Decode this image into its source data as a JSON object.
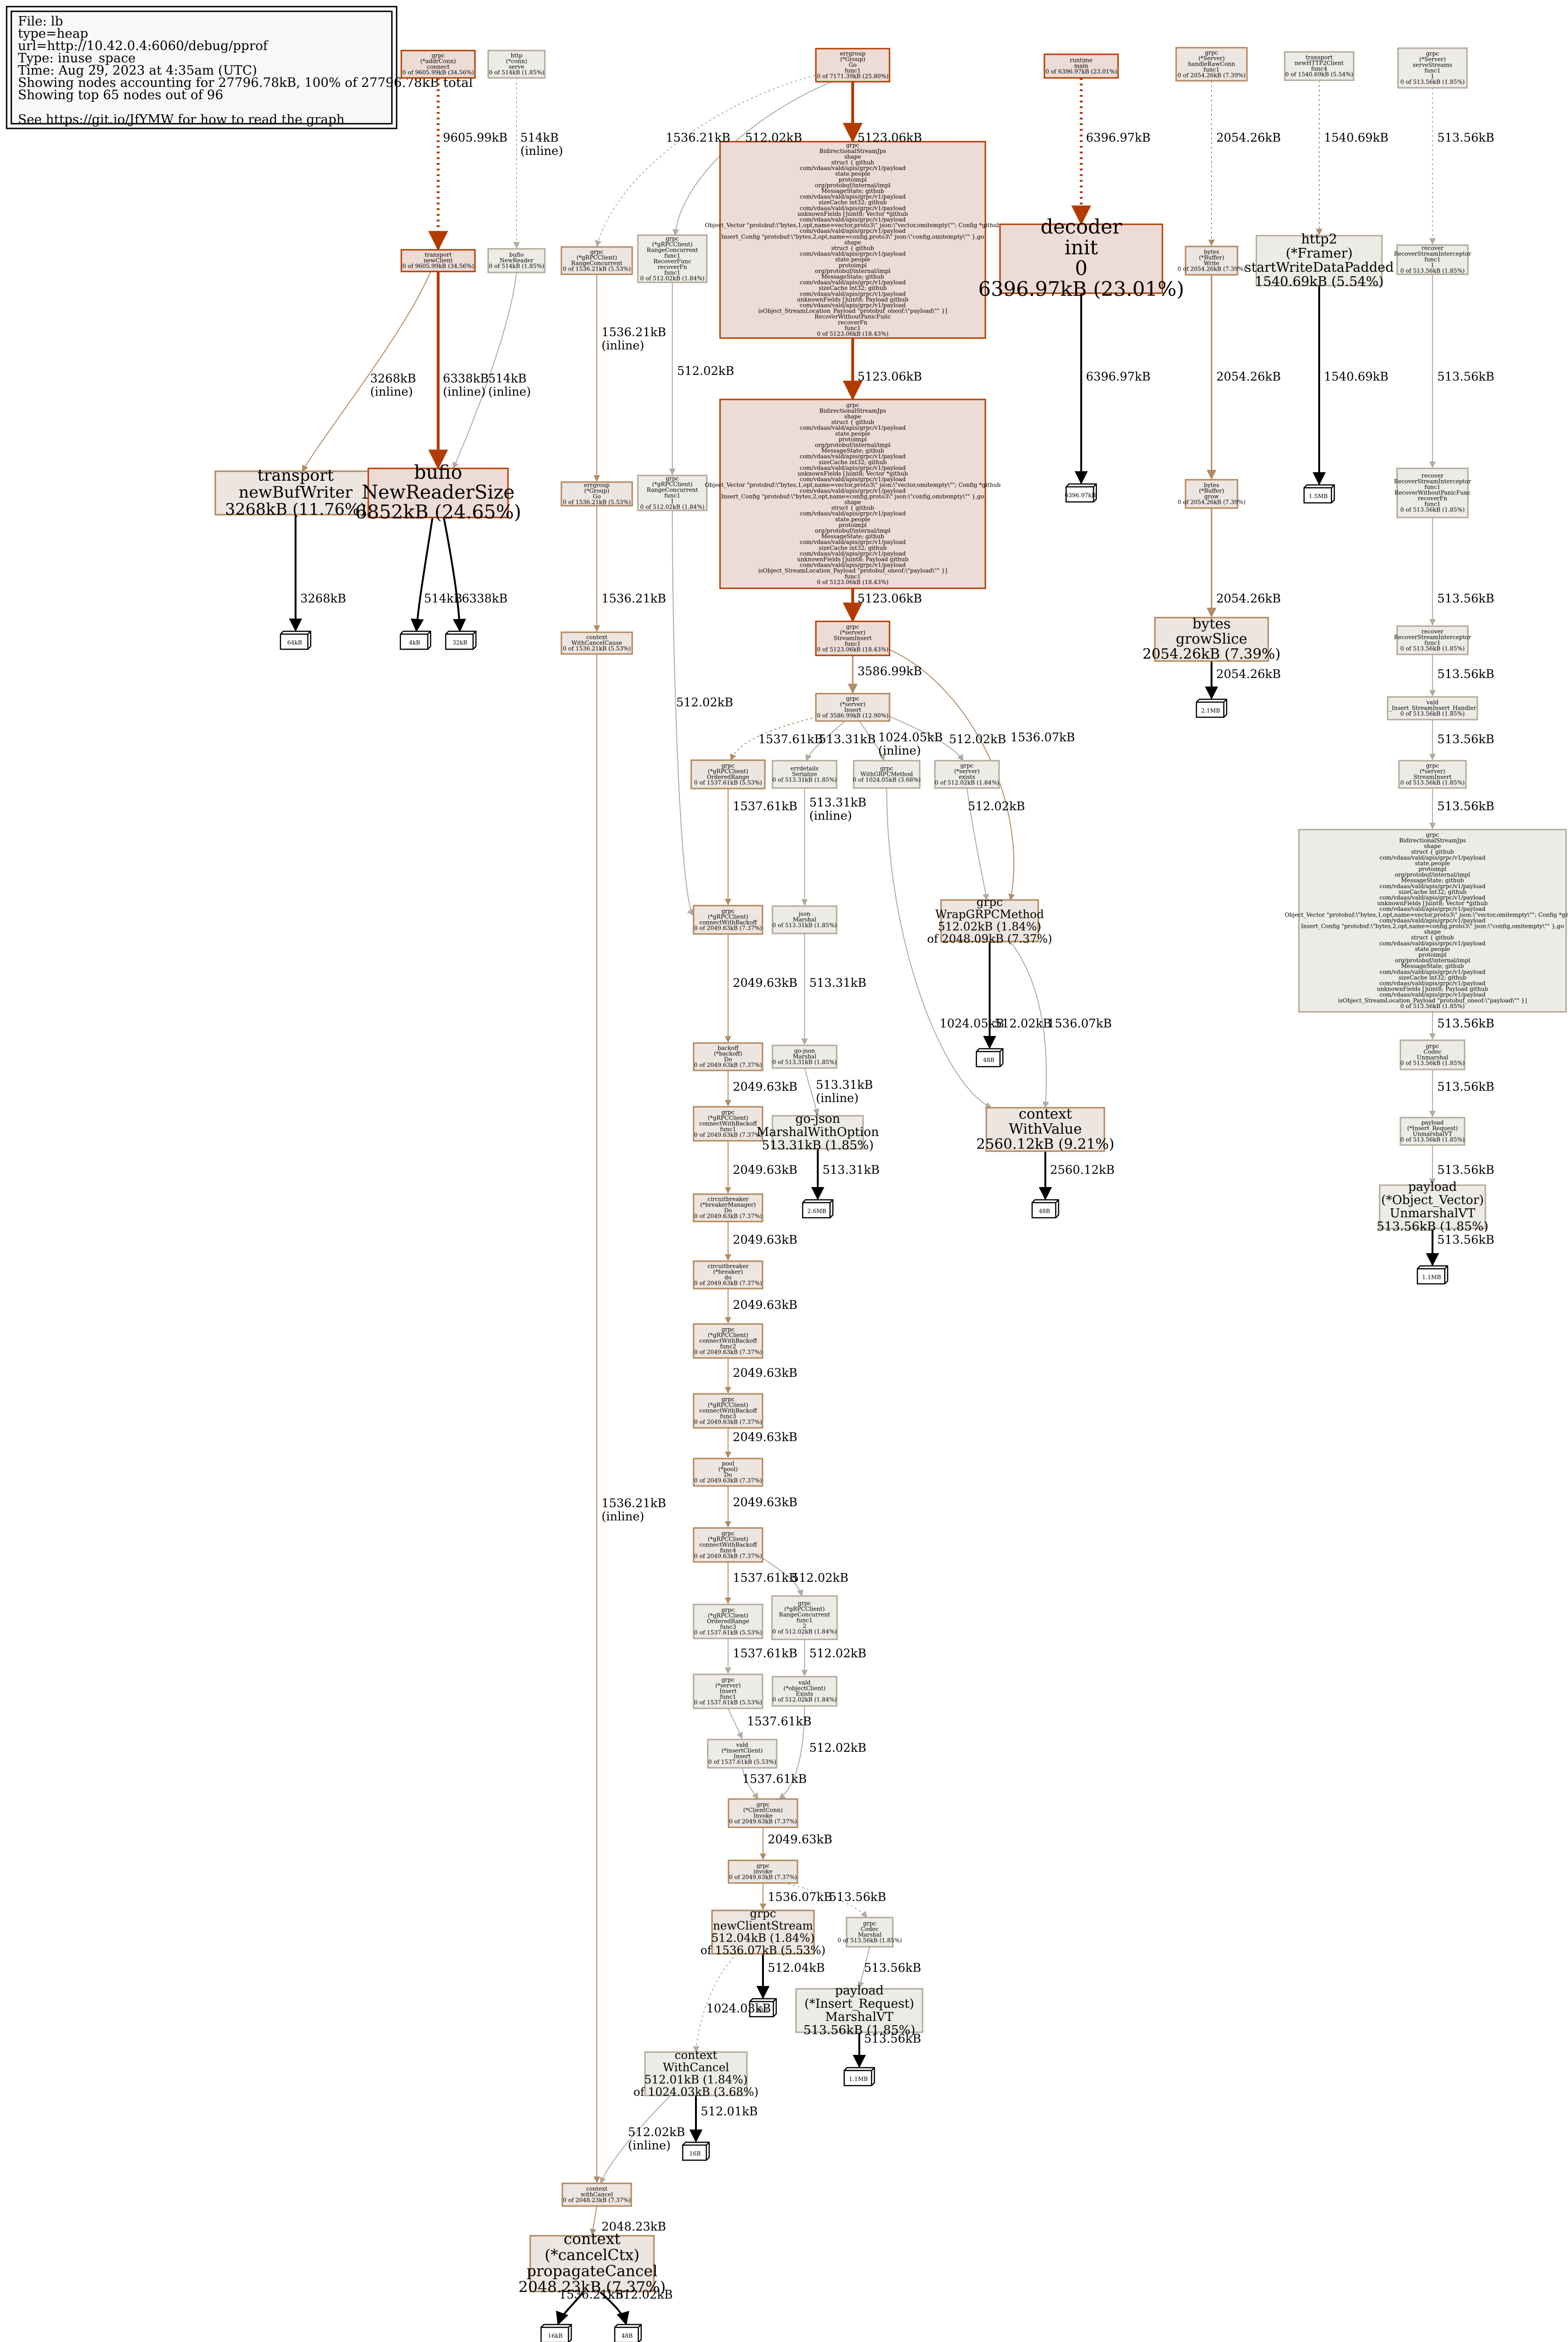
{
  "legend": {
    "lines": [
      "File: lb",
      "type=heap",
      "url=http://10.42.0.4:6060/debug/pprof",
      "Type: inuse_space",
      "Time: Aug 29, 2023 at 4:35am (UTC)",
      "Showing nodes accounting for 27796.78kB, 100% of 27796.78kB total",
      "Showing top 65 nodes out of 96",
      "",
      "See https://git.io/JfYMW for how to read the graph"
    ]
  },
  "colors": {
    "hot_fill": "#eddbd5",
    "hot_stroke": "#b23c00",
    "warm_fill": "#ede5df",
    "warm_stroke": "#b2865c",
    "cool_fill": "#edebe6",
    "cool_stroke": "#b2aa99",
    "edge_hot": "#b23c00",
    "edge_warm": "#b28c66",
    "edge_cool": "#b2ab9e",
    "edge_black": "#000000"
  },
  "nodes": {
    "n_grpc_addrconn_connect": [
      "grpc",
      "(*addrConn)",
      "connect",
      "0 of 9605.99kB (34.56%)"
    ],
    "n_http_conn_serve": [
      "http",
      "(*conn)",
      "serve",
      "0 of 514kB (1.85%)"
    ],
    "n_errgroup_go_func1": [
      "errgroup",
      "(*Group)",
      "Go",
      "func1",
      "0 of 7171.39kB (25.80%)"
    ],
    "n_runtime_main": [
      "runtime",
      "main",
      "0 of 6396.97kB (23.01%)"
    ],
    "n_grpc_server_handleRawConn_func1": [
      "grpc",
      "(*Server)",
      "handleRawConn",
      "func1",
      "0 of 2054.26kB (7.39%)"
    ],
    "n_transport_newhttp2client_func4": [
      "transport",
      "newHTTP2Client",
      "func4",
      "0 of 1540.69kB (5.54%)"
    ],
    "n_grpc_server_serveStreams_func1": [
      "grpc",
      "(*Server)",
      "serveStreams",
      "func1",
      "1",
      "0 of 513.56kB (1.85%)"
    ],
    "n_transport_newClient": [
      "transport",
      "newClient",
      "0 of 9605.99kB (34.56%)"
    ],
    "n_bufio_NewReader": [
      "bufio",
      "NewReader",
      "0 of 514kB (1.85%)"
    ],
    "n_grpc_rangeconcurrent_1": [
      "grpc",
      "(*gRPCClient)",
      "RangeConcurrent",
      "0 of 1536.21kB (5.53%)"
    ],
    "n_grpc_rangeconcurrent_func1": [
      "grpc",
      "(*gRPCClient)",
      "RangeConcurrent",
      "func1",
      "RecoverFunc",
      "recoverFn",
      "func1",
      "0 of 512.02kB (1.84%)"
    ],
    "n_bidi_1": [
      "grpc",
      "BidirectionalStreamJps",
      "shape",
      "struct { github",
      "com/vdaas/vald/apis/grpc/v1/payload",
      "state.people",
      "protoimpl",
      "org/protobuf/internal/impl",
      "MessageState; github",
      "com/vdaas/vald/apis/grpc/v1/payload",
      "sizeCache int32; github",
      "com/vdaas/vald/apis/grpc/v1/payload",
      "unknownFields []uint8; Vector *github",
      "com/vdaas/vald/apis/grpc/v1/payload",
      "Object_Vector \"protobuf:\\\"bytes,1,opt,name=vector,proto3\\\" json:\\\"vector,omitempty\\\"\"; Config *github",
      "com/vdaas/vald/apis/grpc/v1/payload",
      "Insert_Config \"protobuf:\\\"bytes,2,opt,name=config,proto3\\\" json:\\\"config,omitempty\\\"\" },go",
      "shape",
      "struct { github",
      "com/vdaas/vald/apis/grpc/v1/payload",
      "state.people",
      "protoimpl",
      "org/protobuf/internal/impl",
      "MessageState; github",
      "com/vdaas/vald/apis/grpc/v1/payload",
      "sizeCache int32; github",
      "com/vdaas/vald/apis/grpc/v1/payload",
      "unknownFields []uint8; Payload github",
      "com/vdaas/vald/apis/grpc/v1/payload",
      "isObject_StreamLocation_Payload \"protobuf_oneof:\\\"payload\\\"\" }]",
      "RecoverWithoutPanicFunc",
      "recoverFn",
      "func1",
      "0 of 5123.06kB (18.43%)"
    ],
    "n_decoder_init": [
      "decoder",
      "init",
      "0",
      "6396.97kB (23.01%)"
    ],
    "n_bytes_buffer_write": [
      "bytes",
      "(*Buffer)",
      "Write",
      "0 of 2054.26kB (7.39%)"
    ],
    "n_http2_framer": [
      "http2",
      "(*Framer)",
      "startWriteDataPadded",
      "1540.69kB (5.54%)"
    ],
    "n_recover_1": [
      "recover",
      "RecoverStreamInterceptor",
      "func1",
      "1",
      "0 of 513.56kB (1.85%)"
    ],
    "n_transport_newBufWriter": [
      "transport",
      "newBufWriter",
      "3268kB (11.76%)"
    ],
    "n_bufio_NewReaderSize": [
      "bufio",
      "NewReaderSize",
      "6852kB (24.65%)"
    ],
    "n_errgroup_Go": [
      "errgroup",
      "(*Group)",
      "Go",
      "0 of 1536.21kB (5.53%)"
    ],
    "n_grpc_rangeconcurrent_func1b": [
      "grpc",
      "(*gRPCClient)",
      "RangeConcurrent",
      "func1",
      "1",
      "0 of 512.02kB (1.84%)"
    ],
    "n_bidi_2": [
      "grpc",
      "BidirectionalStreamJps",
      "shape",
      "struct { github",
      "com/vdaas/vald/apis/grpc/v1/payload",
      "state.people",
      "protoimpl",
      "org/protobuf/internal/impl",
      "MessageState; github",
      "com/vdaas/vald/apis/grpc/v1/payload",
      "sizeCache int32; github",
      "com/vdaas/vald/apis/grpc/v1/payload",
      "unknownFields []uint8; Vector *github",
      "com/vdaas/vald/apis/grpc/v1/payload",
      "Object_Vector \"protobuf:\\\"bytes,1,opt,name=vector,proto3\\\" json:\\\"vector,omitempty\\\"\"; Config *github",
      "com/vdaas/vald/apis/grpc/v1/payload",
      "Insert_Config \"protobuf:\\\"bytes,2,opt,name=config,proto3\\\" json:\\\"config,omitempty\\\"\" },go",
      "shape",
      "struct { github",
      "com/vdaas/vald/apis/grpc/v1/payload",
      "state.people",
      "protoimpl",
      "org/protobuf/internal/impl",
      "MessageState; github",
      "com/vdaas/vald/apis/grpc/v1/payload",
      "sizeCache int32; github",
      "com/vdaas/vald/apis/grpc/v1/payload",
      "unknownFields []uint8; Payload github",
      "com/vdaas/vald/apis/grpc/v1/payload",
      "isObject_StreamLocation_Payload \"protobuf_oneof:\\\"payload\\\"\" }]",
      "func1",
      "0 of 5123.06kB (18.43%)"
    ],
    "n_bytes_buffer_grow": [
      "bytes",
      "(*Buffer)",
      "grow",
      "0 of 2054.26kB (7.39%)"
    ],
    "n_recover_2": [
      "recover",
      "RecoverStreamInterceptor",
      "func1",
      "RecoverWithoutPanicFunc",
      "recoverFn",
      "func1",
      "0 of 513.56kB (1.85%)"
    ],
    "n_context_WithCancelCause": [
      "context",
      "WithCancelCause",
      "0 of 1536.21kB (5.53%)"
    ],
    "n_grpc_server_StreamInsert": [
      "grpc",
      "(*server)",
      "StreamInsert",
      "func1",
      "0 of 5123.06kB (18.43%)"
    ],
    "n_bytes_growSlice": [
      "bytes",
      "growSlice",
      "2054.26kB (7.39%)"
    ],
    "n_recover_3": [
      "recover",
      "RecoverStreamInterceptor",
      "func1",
      "0 of 513.56kB (1.85%)"
    ],
    "n_vald_insert_handler": [
      "vald",
      "_Insert_StreamInsert_Handler",
      "0 of 513.56kB (1.85%)"
    ],
    "n_grpc_server_Insert": [
      "grpc",
      "(*server)",
      "Insert",
      "0 of 3586.99kB (12.90%)"
    ],
    "n_grpc_server_StreamInsert2": [
      "grpc",
      "(*server)",
      "StreamInsert",
      "0 of 513.56kB (1.85%)"
    ],
    "n_grpc_orderedrange_1": [
      "grpc",
      "(*gRPCClient)",
      "OrderedRange",
      "0 of 1537.61kB (5.53%)"
    ],
    "n_errdetails_Serialize": [
      "errdetails",
      "Serialize",
      "0 of 513.31kB (1.85%)"
    ],
    "n_grpc_WithGRPCMethod": [
      "grpc",
      "WithGRPCMethod",
      "0 of 1024.05kB (3.68%)"
    ],
    "n_grpc_server_exists": [
      "grpc",
      "(*server)",
      "exists",
      "0 of 512.02kB (1.84%)"
    ],
    "n_bidi_3": [
      "grpc",
      "BidirectionalStreamJps",
      "shape",
      "struct { github",
      "com/vdaas/vald/apis/grpc/v1/payload",
      "state.people",
      "protoimpl",
      "org/protobuf/internal/impl",
      "MessageState; github",
      "com/vdaas/vald/apis/grpc/v1/payload",
      "sizeCache int32; github",
      "com/vdaas/vald/apis/grpc/v1/payload",
      "unknownFields []uint8; Vector *github",
      "com/vdaas/vald/apis/grpc/v1/payload",
      "Object_Vector \"protobuf:\\\"bytes,1,opt,name=vector,proto3\\\" json:\\\"vector,omitempty\\\"\"; Config *github",
      "com/vdaas/vald/apis/grpc/v1/payload",
      "Insert_Config \"protobuf:\\\"bytes,2,opt,name=config,proto3\\\" json:\\\"config,omitempty\\\"\" },go",
      "shape",
      "struct { github",
      "com/vdaas/vald/apis/grpc/v1/payload",
      "state.people",
      "protoimpl",
      "org/protobuf/internal/impl",
      "MessageState; github",
      "com/vdaas/vald/apis/grpc/v1/payload",
      "sizeCache int32; github",
      "com/vdaas/vald/apis/grpc/v1/payload",
      "unknownFields []uint8; Payload github",
      "com/vdaas/vald/apis/grpc/v1/payload",
      "isObject_StreamLocation_Payload \"protobuf_oneof:\\\"payload\\\"\" }]",
      "0 of 513.56kB (1.85%)"
    ],
    "n_grpc_connectwithbackoff_1": [
      "grpc",
      "(*gRPCClient)",
      "connectWithBackoff",
      "0 of 2049.63kB (7.37%)"
    ],
    "n_json_Marshal": [
      "json",
      "Marshal",
      "0 of 513.31kB (1.85%)"
    ],
    "n_grpc_WrapGRPCMethod": [
      "grpc",
      "WrapGRPCMethod",
      "512.02kB (1.84%)",
      "of 2048.09kB (7.37%)"
    ],
    "n_backoff_Do": [
      "backoff",
      "(*backoff)",
      "Do",
      "0 of 2049.63kB (7.37%)"
    ],
    "n_gojson_Marshal": [
      "go-json",
      "Marshal",
      "0 of 513.31kB (1.85%)"
    ],
    "n_context_WithValue": [
      "context",
      "WithValue",
      "2560.12kB (9.21%)"
    ],
    "n_grpc_codec_Unmarshal": [
      "grpc",
      "Codec",
      "Unmarshal",
      "0 of 513.56kB (1.85%)"
    ],
    "n_grpc_connectwithbackoff_func1": [
      "grpc",
      "(*gRPCClient)",
      "connectWithBackoff",
      "func1",
      "0 of 2049.63kB (7.37%)"
    ],
    "n_gojson_MarshalWithOption": [
      "go-json",
      "MarshalWithOption",
      "513.31kB (1.85%)"
    ],
    "n_payload_insertreq_unmarshal": [
      "payload",
      "(*Insert_Request)",
      "UnmarshalVT",
      "0 of 513.56kB (1.85%)"
    ],
    "n_cb_breakermanager_Do": [
      "circuitbreaker",
      "(*breakerManager)",
      "Do",
      "0 of 2049.63kB (7.37%)"
    ],
    "n_payload_objectvector_unmarshal": [
      "payload",
      "(*Object_Vector)",
      "UnmarshalVT",
      "513.56kB (1.85%)"
    ],
    "n_cb_breaker_do": [
      "circuitbreaker",
      "(*breaker)",
      "do",
      "0 of 2049.63kB (7.37%)"
    ],
    "n_grpc_connectwithbackoff_func2": [
      "grpc",
      "(*gRPCClient)",
      "connectWithBackoff",
      "func2",
      "0 of 2049.63kB (7.37%)"
    ],
    "n_grpc_connectwithbackoff_func3": [
      "grpc",
      "(*gRPCClient)",
      "connectWithBackoff",
      "func3",
      "0 of 2049.63kB (7.37%)"
    ],
    "n_pool_Do": [
      "pool",
      "(*pool)",
      "Do",
      "0 of 2049.63kB (7.37%)"
    ],
    "n_grpc_connectwithbackoff_func4": [
      "grpc",
      "(*gRPCClient)",
      "connectWithBackoff",
      "func4",
      "0 of 2049.63kB (7.37%)"
    ],
    "n_grpc_orderedrange_func3": [
      "grpc",
      "(*gRPCClient)",
      "OrderedRange",
      "func3",
      "0 of 1537.61kB (5.53%)"
    ],
    "n_grpc_rangeconcurrent_func1c": [
      "grpc",
      "(*gRPCClient)",
      "RangeConcurrent",
      "func1",
      "2",
      "0 of 512.02kB (1.84%)"
    ],
    "n_grpc_server_Insert_func1": [
      "grpc",
      "(*server)",
      "Insert",
      "func1",
      "0 of 1537.61kB (5.53%)"
    ],
    "n_vald_objectclient_Exists": [
      "vald",
      "(*objectClient)",
      "Exists",
      "0 of 512.02kB (1.84%)"
    ],
    "n_vald_insertclient_Insert": [
      "vald",
      "(*insertClient)",
      "Insert",
      "0 of 1537.61kB (5.53%)"
    ],
    "n_grpc_clientconn_invoke": [
      "grpc",
      "(*ClientConn)",
      "Invoke",
      "0 of 2049.63kB (7.37%)"
    ],
    "n_grpc_invoke": [
      "grpc",
      "invoke",
      "0 of 2049.63kB (7.37%)"
    ],
    "n_grpc_newClientStream": [
      "grpc",
      "newClientStream",
      "512.04kB (1.84%)",
      "of 1536.07kB (5.53%)"
    ],
    "n_grpc_codec_Marshal": [
      "grpc",
      "Codec",
      "Marshal",
      "0 of 513.56kB (1.85%)"
    ],
    "n_payload_insertreq_marshal": [
      "payload",
      "(*Insert_Request)",
      "MarshalVT",
      "513.56kB (1.85%)"
    ],
    "n_context_WithCancel": [
      "context",
      "WithCancel",
      "512.01kB (1.84%)",
      "of 1024.03kB (3.68%)"
    ],
    "n_context_withCancel": [
      "context",
      "withCancel",
      "0 of 2048.23kB (7.37%)"
    ],
    "n_context_propagateCancel": [
      "context",
      "(*cancelCtx)",
      "propagateCancel",
      "2048.23kB (7.37%)"
    ]
  },
  "leaves": {
    "l_6396": "6396.97kB",
    "l_1540": "1.5MB",
    "l_3268": "64kB",
    "l_514": "4kB",
    "l_6338": "32kB",
    "l_2054": "2.1MB",
    "l_wrap": "48B",
    "l_513_31": "2.6MB",
    "l_ctxv": "48B",
    "l_513_56": "1.1MB",
    "l_ncs": "48B",
    "l_pm": "1.1MB",
    "l_wc": "16B",
    "l_pc1": "16kB",
    "l_pc2": "48B"
  },
  "edges": {
    "e1": "9605.99kB",
    "e2": "514kB",
    "e2b": "(inline)",
    "e3": "1536.21kB",
    "e4": "512.02kB",
    "e5": "5123.06kB",
    "e6": "6396.97kB",
    "e7": "2054.26kB",
    "e8": "1540.69kB",
    "e9": "513.56kB",
    "e10": "3268kB",
    "e10b": "(inline)",
    "e11": "6338kB",
    "e11b": "(inline)",
    "e12": "514kB",
    "e12b": "(inline)",
    "e13": "1536.21kB",
    "e13b": "(inline)",
    "e14": "512.02kB",
    "e15": "5123.06kB",
    "e16": "6396.97kB",
    "e17": "2054.26kB",
    "e18": "1540.69kB",
    "e19": "513.56kB",
    "e20": "3268kB",
    "e21": "514kB",
    "e22": "6338kB",
    "e23": "1536.21kB",
    "e24": "5123.06kB",
    "e25": "2054.26kB",
    "e26": "513.56kB",
    "e27": "3586.99kB",
    "e28": "1536.07kB",
    "e29": "2054.26kB",
    "e30": "513.56kB",
    "e31": "1537.61kB",
    "e32": "513.31kB",
    "e33": "1024.05kB",
    "e33b": "(inline)",
    "e34": "512.02kB",
    "e35": "512.02kB",
    "e36": "513.56kB",
    "e37": "1537.61kB",
    "e38": "513.31kB",
    "e38b": "(inline)",
    "e39": "512.02kB",
    "e40": "513.56kB",
    "e41": "2049.63kB",
    "e42": "513.31kB",
    "e43": "1024.05kB",
    "e44": "512.02kB",
    "e45": "1536.07kB",
    "e46": "513.56kB",
    "e47": "2049.63kB",
    "e48": "513.31kB",
    "e48b": "(inline)",
    "e49": "2560.12kB",
    "e50": "513.56kB",
    "e51": "2049.63kB",
    "e52": "513.31kB",
    "e53": "513.56kB",
    "e54": "2049.63kB",
    "e55": "2049.63kB",
    "e56": "2049.63kB",
    "e57": "2049.63kB",
    "e58": "1537.61kB",
    "e59": "512.02kB",
    "e60": "1537.61kB",
    "e61": "512.02kB",
    "e62": "1537.61kB",
    "e63": "512.02kB",
    "e64": "1537.61kB",
    "e65": "2049.63kB",
    "e66": "1536.07kB",
    "e67": "513.56kB",
    "e68": "512.04kB",
    "e69": "1024.03kB",
    "e70": "513.56kB",
    "e71": "512.01kB",
    "e72": "512.02kB",
    "e72b": "(inline)",
    "e73": "1536.21kB",
    "e73b": "(inline)",
    "e74": "2048.23kB",
    "e75": "1536.21kB",
    "e76": "512.02kB"
  }
}
